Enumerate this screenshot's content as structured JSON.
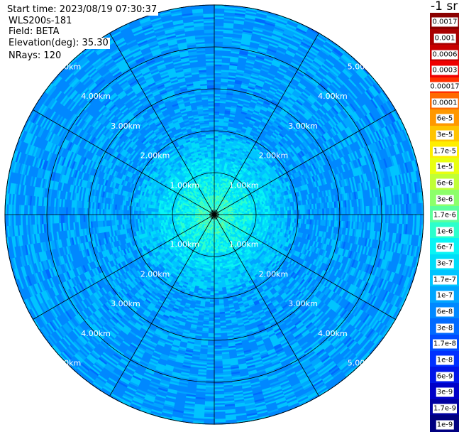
{
  "header": {
    "start_time": "Start time: 2023/08/19 07:30:37",
    "instrument": "WLS200s-181",
    "field": "Field: BETA",
    "elevation": "Elevation(deg): 35.30",
    "nrays": "NRays: 120"
  },
  "chart_data": {
    "type": "heatmap",
    "subtype": "polar-ppi",
    "field": "BETA",
    "colorbar_unit": "-1 sr",
    "range_rings": [
      "1.00km",
      "2.00km",
      "3.00km",
      "4.00km",
      "5.00km"
    ],
    "ring_values_km": [
      1,
      2,
      3,
      4,
      5
    ],
    "max_range_km": 5.0,
    "spokes_deg": [
      0,
      30,
      60,
      90,
      120,
      150,
      180,
      210,
      240,
      270,
      300,
      330
    ],
    "colorbar": [
      {
        "label": "0.0017",
        "color": "#8b0000"
      },
      {
        "label": "0.001",
        "color": "#a80000"
      },
      {
        "label": "0.0006",
        "color": "#c80000"
      },
      {
        "label": "0.0003",
        "color": "#ee0000"
      },
      {
        "label": "0.00017",
        "color": "#ff3000"
      },
      {
        "label": "0.0001",
        "color": "#ff6a00"
      },
      {
        "label": "6e-5",
        "color": "#ff9800"
      },
      {
        "label": "3e-5",
        "color": "#ffc400"
      },
      {
        "label": "1.7e-5",
        "color": "#ffee00"
      },
      {
        "label": "1e-5",
        "color": "#e8ff10"
      },
      {
        "label": "6e-6",
        "color": "#c0ff35"
      },
      {
        "label": "3e-6",
        "color": "#8cff6a"
      },
      {
        "label": "1.7e-6",
        "color": "#5cff9c"
      },
      {
        "label": "1e-6",
        "color": "#2cffcc"
      },
      {
        "label": "6e-7",
        "color": "#08f4f4"
      },
      {
        "label": "3e-7",
        "color": "#00ddf8"
      },
      {
        "label": "1.7e-7",
        "color": "#00c4ff"
      },
      {
        "label": "1e-7",
        "color": "#00a6ff"
      },
      {
        "label": "6e-8",
        "color": "#0088ff"
      },
      {
        "label": "3e-8",
        "color": "#006aff"
      },
      {
        "label": "1.7e-8",
        "color": "#004cff"
      },
      {
        "label": "1e-8",
        "color": "#0030ff"
      },
      {
        "label": "6e-9",
        "color": "#0014e8"
      },
      {
        "label": "3e-9",
        "color": "#0000c8"
      },
      {
        "label": "1.7e-9",
        "color": "#0000a0"
      },
      {
        "label": "1e-9",
        "color": "#000080"
      }
    ]
  }
}
